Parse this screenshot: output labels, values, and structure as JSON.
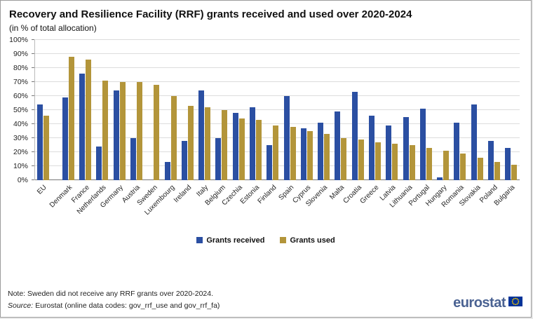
{
  "header": {
    "title": "Recovery and Resilience Facility (RRF) grants received and used over 2020-2024",
    "subtitle": "(in % of total allocation)"
  },
  "chart_data": {
    "type": "bar",
    "title": "Recovery and Resilience Facility (RRF) grants received and used over 2020-2024",
    "subtitle": "(in % of total allocation)",
    "categories": [
      "EU",
      "Denmark",
      "France",
      "Netherlands",
      "Germany",
      "Austria",
      "Sweden",
      "Luxembourg",
      "Ireland",
      "Italy",
      "Belgium",
      "Czechia",
      "Estonia",
      "Finland",
      "Spain",
      "Cyprus",
      "Slovenia",
      "Malta",
      "Croatia",
      "Greece",
      "Latvia",
      "Lithuania",
      "Portugal",
      "Hungary",
      "Romania",
      "Slovakia",
      "Poland",
      "Bulgaria"
    ],
    "series": [
      {
        "name": "Grants received",
        "color": "#2b4fa2",
        "values": [
          54,
          59,
          76,
          24,
          64,
          30,
          0,
          13,
          28,
          64,
          30,
          48,
          52,
          25,
          60,
          37,
          41,
          49,
          63,
          46,
          39,
          45,
          51,
          2,
          41,
          54,
          28,
          23
        ]
      },
      {
        "name": "Grants used",
        "color": "#b3953a",
        "values": [
          46,
          88,
          86,
          71,
          70,
          70,
          68,
          60,
          53,
          52,
          50,
          44,
          43,
          39,
          38,
          35,
          33,
          30,
          29,
          27,
          26,
          25,
          23,
          21,
          19,
          16,
          13,
          11
        ]
      }
    ],
    "ylim": [
      0,
      100
    ],
    "ytick_step": 10,
    "yticks": [
      "0%",
      "10%",
      "20%",
      "30%",
      "40%",
      "50%",
      "60%",
      "70%",
      "80%",
      "90%",
      "100%"
    ],
    "xlabel": "",
    "ylabel": "",
    "grid": true,
    "legend_position": "bottom",
    "separator_after": "EU"
  },
  "footer": {
    "note": "Note: Sweden did not receive any RRF grants over 2020-2024.",
    "source_label": "Source:",
    "source_rest": "Eurostat (online data codes: gov_rrf_use and gov_rrf_fa)",
    "logo_text": "eurostat"
  }
}
